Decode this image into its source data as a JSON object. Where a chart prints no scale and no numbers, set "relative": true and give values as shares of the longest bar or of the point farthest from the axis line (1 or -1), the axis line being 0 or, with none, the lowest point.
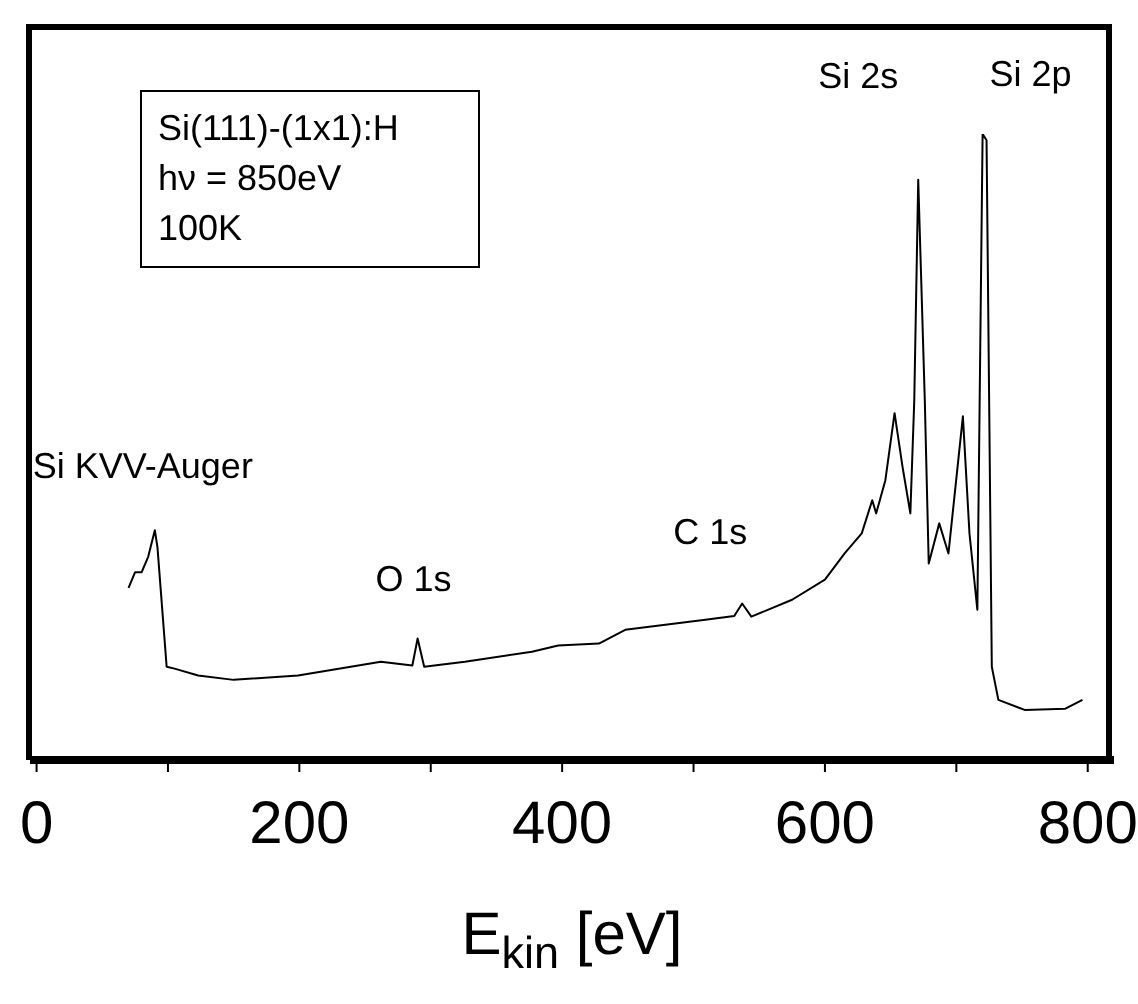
{
  "chart_data": {
    "type": "line",
    "xlabel": "E$_{kin}$ [eV]",
    "relative": true,
    "xlim": [
      -5,
      820
    ],
    "xticks": [
      0,
      {
        "value": 100,
        "label": null
      },
      200,
      {
        "value": 300,
        "label": null
      },
      400,
      {
        "value": 500,
        "label": null
      },
      600,
      {
        "value": 700,
        "label": null
      },
      800
    ],
    "annotations": [
      "Si(111)-(1x1):H",
      "hν = 850eV",
      "100K",
      {
        "text": "Si KVV-Auger",
        "x": 90,
        "y": 0.367
      },
      {
        "text": "O 1s",
        "x": 290,
        "y": 0.194
      },
      {
        "text": "C 1s",
        "x": 537,
        "y": 0.25
      },
      {
        "text": "Si 2s",
        "x": 671,
        "y": 0.927
      },
      {
        "text": "Si 2p",
        "x": 720,
        "y": 1.0
      }
    ],
    "series": [
      {
        "color": "#000000",
        "x": [
          70,
          75,
          80,
          85,
          90,
          92,
          99,
          105,
          123,
          150,
          199,
          262,
          286,
          290,
          295,
          326,
          377,
          397,
          428,
          448,
          509,
          531,
          537,
          544,
          575,
          600,
          615,
          628,
          636,
          639,
          646,
          653,
          659,
          665,
          668,
          671,
          676,
          679,
          687,
          694,
          705,
          710,
          716,
          720,
          723,
          727,
          732,
          752,
          783,
          796
        ],
        "values": [
          0.275,
          0.3,
          0.3,
          0.325,
          0.367,
          0.34,
          0.149,
          0.146,
          0.135,
          0.128,
          0.135,
          0.157,
          0.151,
          0.194,
          0.149,
          0.157,
          0.173,
          0.183,
          0.186,
          0.208,
          0.224,
          0.23,
          0.25,
          0.229,
          0.256,
          0.288,
          0.33,
          0.362,
          0.415,
          0.394,
          0.447,
          0.554,
          0.469,
          0.394,
          0.575,
          0.927,
          0.575,
          0.314,
          0.378,
          0.33,
          0.549,
          0.362,
          0.24,
          1.0,
          0.99,
          0.149,
          0.096,
          0.08,
          0.082,
          0.096
        ]
      }
    ]
  }
}
